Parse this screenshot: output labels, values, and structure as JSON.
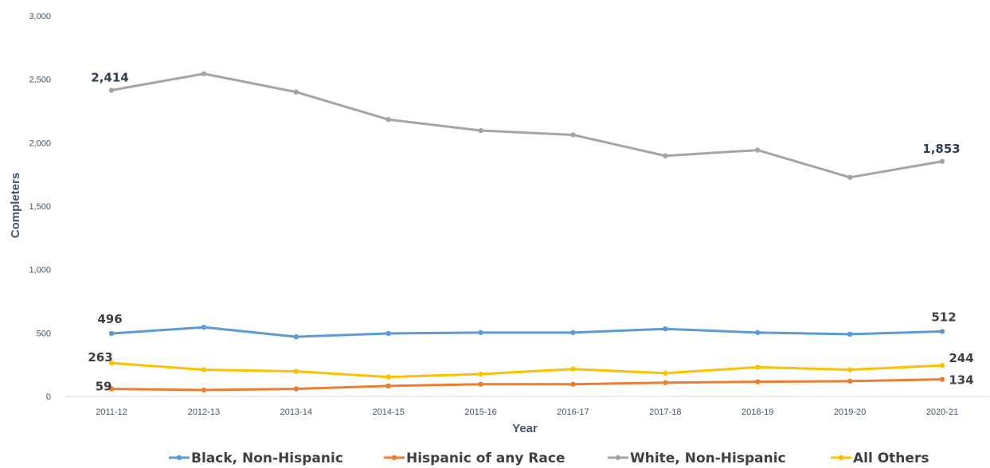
{
  "chart_data": {
    "type": "line",
    "title": "",
    "xlabel": "Year",
    "ylabel": "Completers",
    "categories": [
      "2011-12",
      "2012-13",
      "2013-14",
      "2014-15",
      "2015-16",
      "2016-17",
      "2017-18",
      "2018-19",
      "2019-20",
      "2020-21"
    ],
    "ylim": [
      0,
      3000
    ],
    "y_ticks": [
      0,
      500,
      1000,
      1500,
      2000,
      2500,
      3000
    ],
    "y_tick_labels": [
      "0",
      "500",
      "1,000",
      "1,500",
      "2,000",
      "2,500",
      "3,000"
    ],
    "grid": false,
    "legend_position": "bottom",
    "series": [
      {
        "name": "Black, Non-Hispanic",
        "color": "#5b9bd5",
        "values": [
          496,
          545,
          470,
          496,
          503,
          503,
          532,
          503,
          490,
          512
        ],
        "labels": [
          {
            "index": 0,
            "text": "496"
          },
          {
            "index": 9,
            "text": "512"
          }
        ]
      },
      {
        "name": "Hispanic of any Race",
        "color": "#ed7d31",
        "values": [
          59,
          50,
          59,
          82,
          96,
          96,
          108,
          115,
          120,
          134
        ],
        "labels": [
          {
            "index": 0,
            "text": "59"
          },
          {
            "index": 9,
            "text": "134"
          }
        ]
      },
      {
        "name": "White, Non-Hispanic",
        "color": "#a5a5a5",
        "values": [
          2414,
          2544,
          2400,
          2183,
          2096,
          2062,
          1897,
          1942,
          1727,
          1853
        ],
        "labels": [
          {
            "index": 0,
            "text": "2,414"
          },
          {
            "index": 9,
            "text": "1,853"
          }
        ]
      },
      {
        "name": "All Others",
        "color": "#ffc000",
        "values": [
          263,
          210,
          197,
          153,
          176,
          215,
          183,
          230,
          210,
          244
        ],
        "labels": [
          {
            "index": 0,
            "text": "263"
          },
          {
            "index": 9,
            "text": "244"
          }
        ]
      }
    ]
  }
}
